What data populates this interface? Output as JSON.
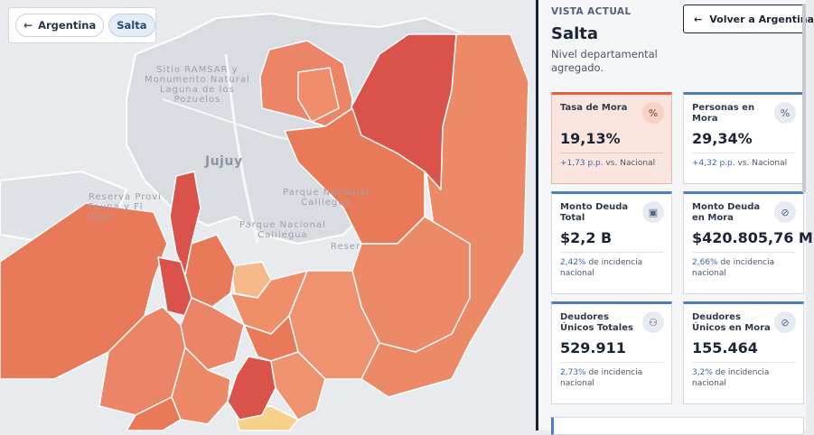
{
  "breadcrumb": {
    "back_label": "Argentina",
    "current_label": "Salta"
  },
  "map": {
    "labels": {
      "ramsar": "Sitio RAMSAR y\nMonumento Natural\nLaguna de los\nPozuelos",
      "jujuy": "Jujuy",
      "reserva": "Reserva Provi\nFauna y Fl\nCaur",
      "calilegua1": "Parque Nacional\nCalilegua",
      "calilegua2": "Parque Nacional\nCalilegua",
      "reser": "Reser"
    },
    "colors": {
      "dark": "#d9534a",
      "mid": "#e87a5a",
      "light": "#ee8f6a",
      "pale": "#f5b98a",
      "yellow": "#f7d08a"
    }
  },
  "panel": {
    "eyebrow": "VISTA ACTUAL",
    "title": "Salta",
    "subtitle": "Nivel departamental agregado.",
    "back_button": "Volver a Argentina",
    "cards": [
      {
        "label": "Tasa de Mora",
        "icon": "percent-icon",
        "icon_glyph": "%",
        "value": "19,13%",
        "delta": "+1,73 p.p.",
        "suffix": "vs. Nacional",
        "alert": true
      },
      {
        "label": "Personas en Mora",
        "icon": "percent-icon",
        "icon_glyph": "%",
        "value": "29,34%",
        "delta": "+4,32 p.p.",
        "suffix": "vs. Nacional",
        "alert": false
      },
      {
        "label": "Monto Deuda Total",
        "icon": "banknote-icon",
        "icon_glyph": "▣",
        "value": "$2,2 B",
        "delta": "2,42%",
        "suffix": "de incidencia nacional",
        "alert": false
      },
      {
        "label": "Monto Deuda en Mora",
        "icon": "money-off-icon",
        "icon_glyph": "⊘",
        "value": "$420.805,76 M",
        "delta": "2,66%",
        "suffix": "de incidencia nacional",
        "alert": false
      },
      {
        "label": "Deudores Únicos Totales",
        "icon": "users-icon",
        "icon_glyph": "⚇",
        "value": "529.911",
        "delta": "2,73%",
        "suffix": "de incidencia nacional",
        "alert": false
      },
      {
        "label": "Deudores Únicos en Mora",
        "icon": "user-off-icon",
        "icon_glyph": "⊘",
        "value": "155.464",
        "delta": "3,2%",
        "suffix": "de incidencia nacional",
        "alert": false
      }
    ]
  }
}
